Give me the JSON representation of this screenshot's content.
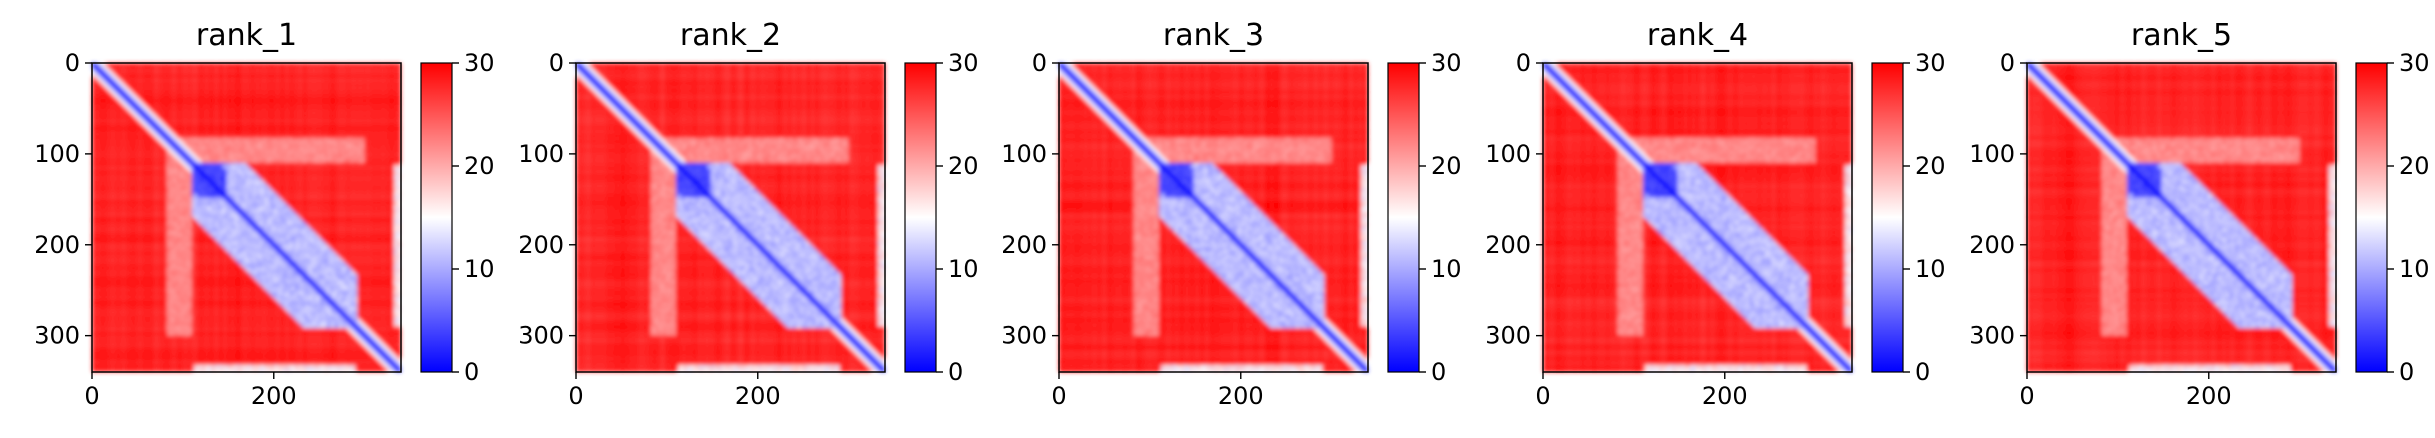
{
  "figure": {
    "layout": "1x5 heatmap panels with colorbars"
  },
  "chart_data": [
    {
      "type": "heatmap",
      "title": "rank_1",
      "xticks": [
        0,
        200
      ],
      "yticks": [
        0,
        100,
        200,
        300
      ],
      "xlim": [
        0,
        340
      ],
      "ylim": [
        340,
        0
      ],
      "colorbar": {
        "ticks": [
          0,
          10,
          20,
          30
        ],
        "range": [
          0,
          30
        ],
        "colormap": "bwr",
        "colors": [
          "#0000ff",
          "#ffffff",
          "#ff0000"
        ]
      },
      "grid": false
    },
    {
      "type": "heatmap",
      "title": "rank_2",
      "xticks": [
        0,
        200
      ],
      "yticks": [
        0,
        100,
        200,
        300
      ],
      "xlim": [
        0,
        340
      ],
      "ylim": [
        340,
        0
      ],
      "colorbar": {
        "ticks": [
          0,
          10,
          20,
          30
        ],
        "range": [
          0,
          30
        ],
        "colormap": "bwr",
        "colors": [
          "#0000ff",
          "#ffffff",
          "#ff0000"
        ]
      },
      "grid": false
    },
    {
      "type": "heatmap",
      "title": "rank_3",
      "xticks": [
        0,
        200
      ],
      "yticks": [
        0,
        100,
        200,
        300
      ],
      "xlim": [
        0,
        340
      ],
      "ylim": [
        340,
        0
      ],
      "colorbar": {
        "ticks": [
          0,
          10,
          20,
          30
        ],
        "range": [
          0,
          30
        ],
        "colormap": "bwr",
        "colors": [
          "#0000ff",
          "#ffffff",
          "#ff0000"
        ]
      },
      "grid": false
    },
    {
      "type": "heatmap",
      "title": "rank_4",
      "xticks": [
        0,
        200
      ],
      "yticks": [
        0,
        100,
        200,
        300
      ],
      "xlim": [
        0,
        340
      ],
      "ylim": [
        340,
        0
      ],
      "colorbar": {
        "ticks": [
          0,
          10,
          20,
          30
        ],
        "range": [
          0,
          30
        ],
        "colormap": "bwr",
        "colors": [
          "#0000ff",
          "#ffffff",
          "#ff0000"
        ]
      },
      "grid": false
    },
    {
      "type": "heatmap",
      "title": "rank_5",
      "xticks": [
        0,
        200
      ],
      "yticks": [
        0,
        100,
        200,
        300
      ],
      "xlim": [
        0,
        340
      ],
      "ylim": [
        340,
        0
      ],
      "colorbar": {
        "ticks": [
          0,
          10,
          20,
          30
        ],
        "range": [
          0,
          30
        ],
        "colormap": "bwr",
        "colors": [
          "#0000ff",
          "#ffffff",
          "#ff0000"
        ]
      },
      "grid": false
    }
  ]
}
